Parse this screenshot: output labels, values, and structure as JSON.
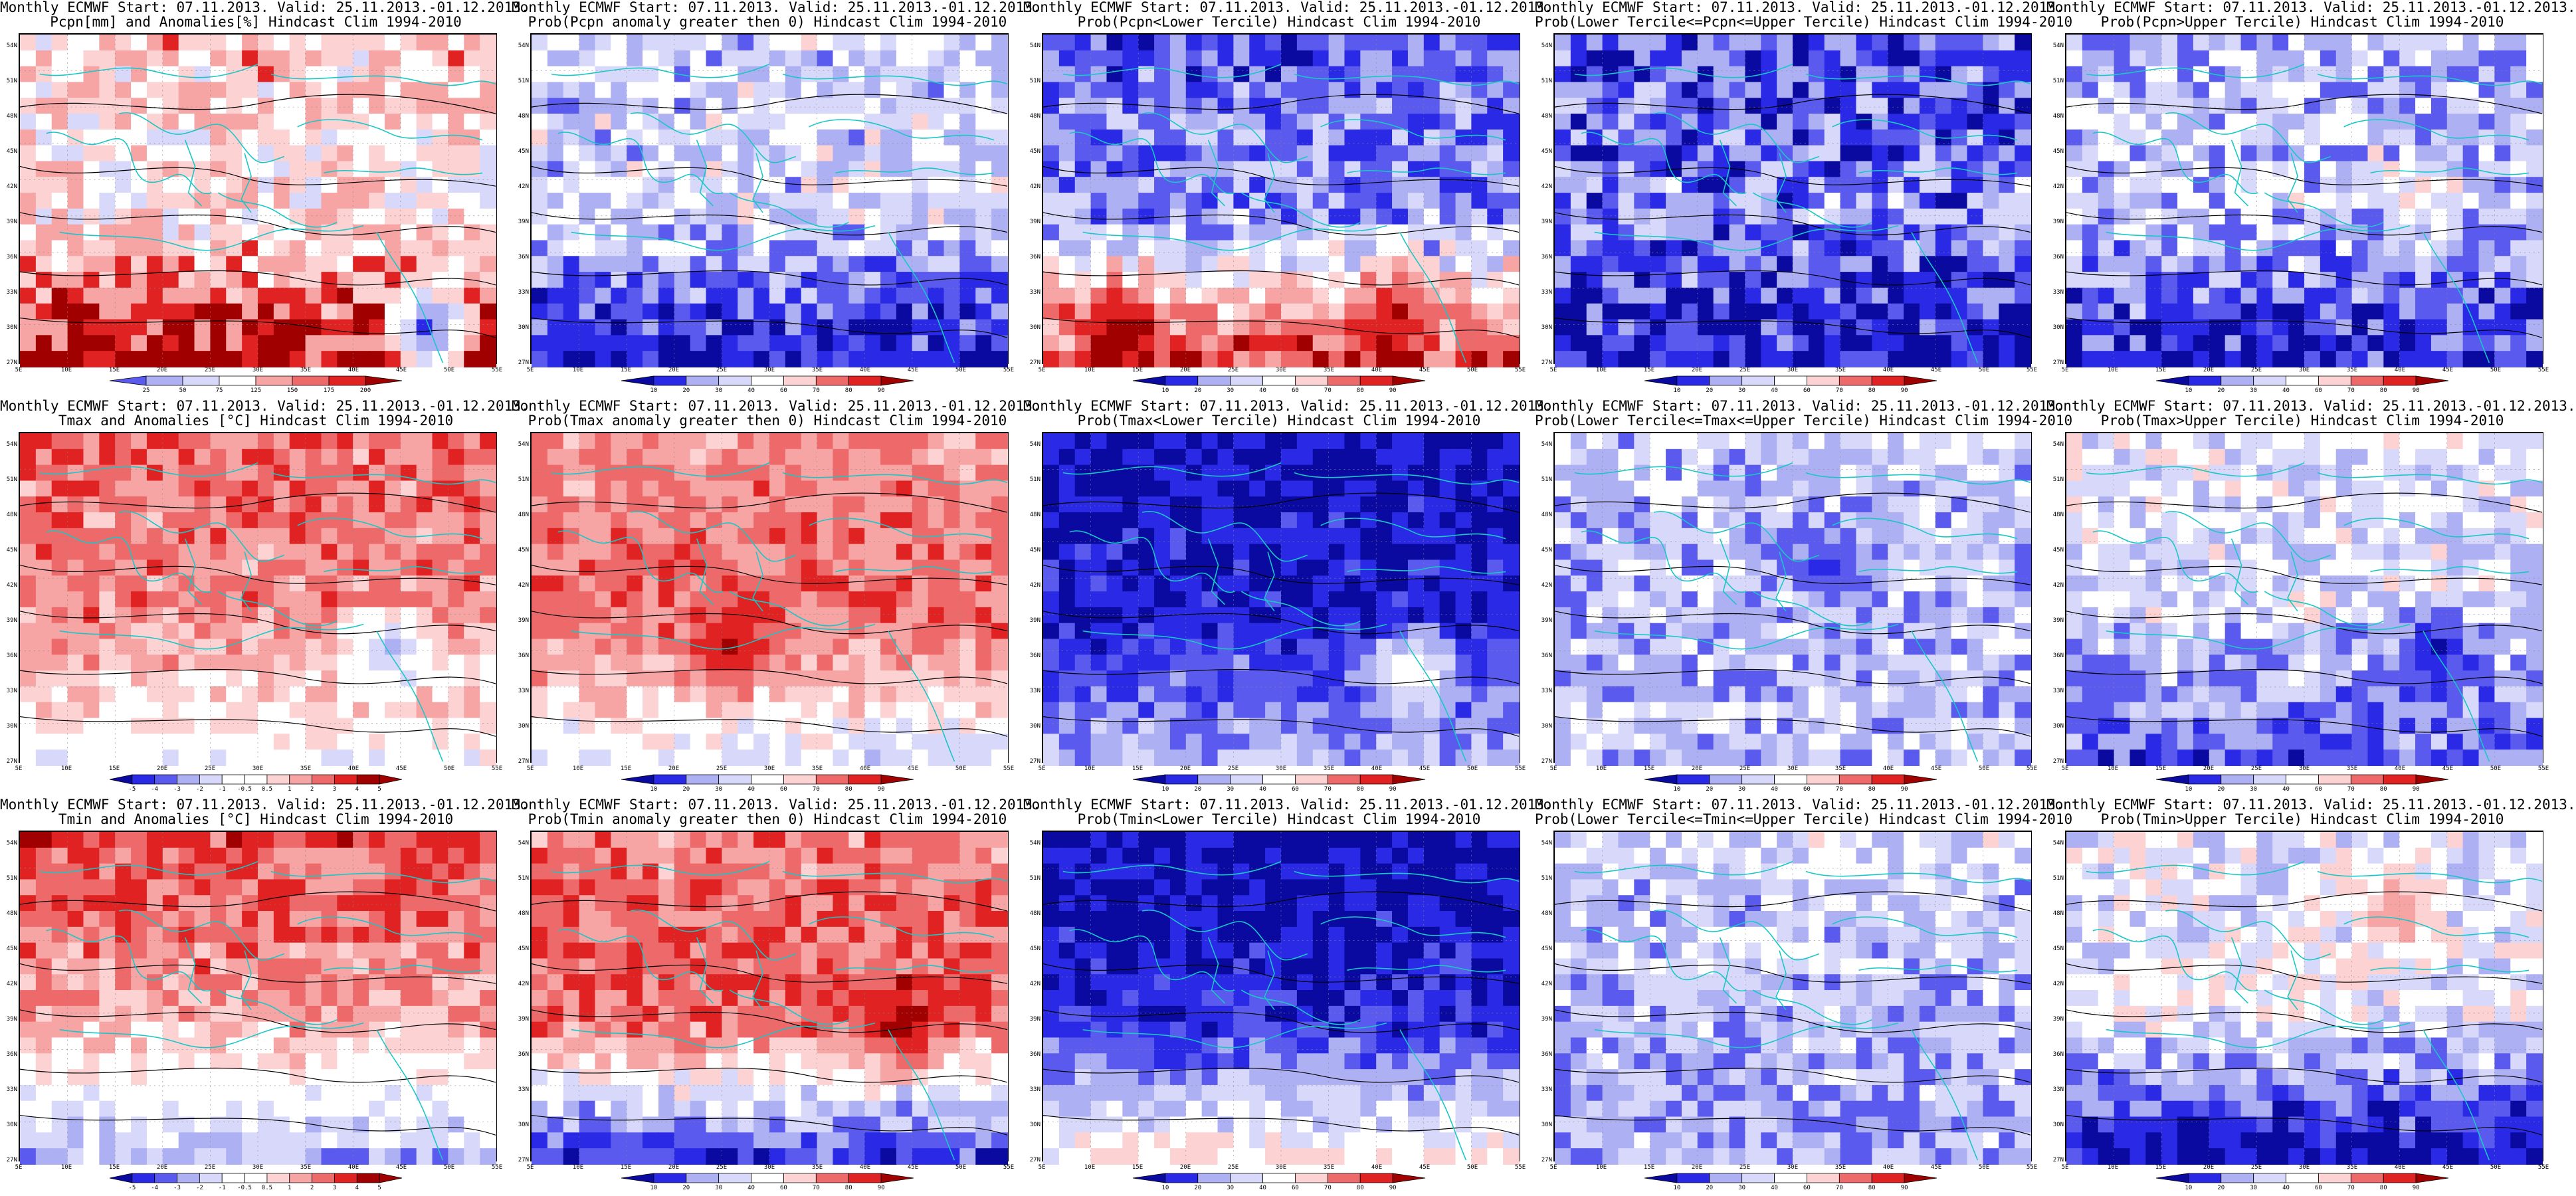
{
  "panels": [
    {
      "title_line1": "Monthly ECMWF Start: 07.11.2013. Valid: 25.11.2013.-01.12.2013.",
      "title_line2": "Pcpn[mm] and Anomalies[%] Hindcast Clim 1994-2010",
      "colorbar_ticks": [
        "25",
        "50",
        "75",
        "125",
        "150",
        "175",
        "200"
      ],
      "palette": "pcpn"
    },
    {
      "title_line1": "Monthly ECMWF Start: 07.11.2013. Valid: 25.11.2013.-01.12.2013.",
      "title_line2": "Prob(Pcpn anomaly greater then 0) Hindcast Clim 1994-2010",
      "colorbar_ticks": [
        "10",
        "20",
        "30",
        "40",
        "60",
        "70",
        "80",
        "90"
      ],
      "palette": "prob"
    },
    {
      "title_line1": "Monthly ECMWF Start: 07.11.2013. Valid: 25.11.2013.-01.12.2013.",
      "title_line2": "Prob(Pcpn<Lower Tercile) Hindcast Clim 1994-2010",
      "colorbar_ticks": [
        "10",
        "20",
        "30",
        "40",
        "60",
        "70",
        "80",
        "90"
      ],
      "palette": "prob"
    },
    {
      "title_line1": "Monthly ECMWF Start: 07.11.2013. Valid: 25.11.2013.-01.12.2013.",
      "title_line2": "Prob(Lower Tercile<=Pcpn<=Upper Tercile) Hindcast Clim 1994-2010",
      "colorbar_ticks": [
        "10",
        "20",
        "30",
        "40",
        "60",
        "70",
        "80",
        "90"
      ],
      "palette": "prob"
    },
    {
      "title_line1": "Monthly ECMWF Start: 07.11.2013. Valid: 25.11.2013.-01.12.2013.",
      "title_line2": "Prob(Pcpn>Upper Tercile) Hindcast Clim 1994-2010",
      "colorbar_ticks": [
        "10",
        "20",
        "30",
        "40",
        "60",
        "70",
        "80",
        "90"
      ],
      "palette": "prob"
    },
    {
      "title_line1": "Monthly ECMWF Start: 07.11.2013. Valid: 25.11.2013.-01.12.2013.",
      "title_line2": "Tmax and Anomalies [°C] Hindcast Clim 1994-2010",
      "colorbar_ticks": [
        "-5",
        "-4",
        "-3",
        "-2",
        "-1",
        "-0.5",
        "0.5",
        "1",
        "2",
        "3",
        "4",
        "5"
      ],
      "palette": "temp"
    },
    {
      "title_line1": "Monthly ECMWF Start: 07.11.2013. Valid: 25.11.2013.-01.12.2013.",
      "title_line2": "Prob(Tmax anomaly greater then 0) Hindcast Clim 1994-2010",
      "colorbar_ticks": [
        "10",
        "20",
        "30",
        "40",
        "60",
        "70",
        "80",
        "90"
      ],
      "palette": "prob"
    },
    {
      "title_line1": "Monthly ECMWF Start: 07.11.2013. Valid: 25.11.2013.-01.12.2013.",
      "title_line2": "Prob(Tmax<Lower Tercile) Hindcast Clim 1994-2010",
      "colorbar_ticks": [
        "10",
        "20",
        "30",
        "40",
        "60",
        "70",
        "80",
        "90"
      ],
      "palette": "prob"
    },
    {
      "title_line1": "Monthly ECMWF Start: 07.11.2013. Valid: 25.11.2013.-01.12.2013.",
      "title_line2": "Prob(Lower Tercile<=Tmax<=Upper Tercile) Hindcast Clim 1994-2010",
      "colorbar_ticks": [
        "10",
        "20",
        "30",
        "40",
        "60",
        "70",
        "80",
        "90"
      ],
      "palette": "prob"
    },
    {
      "title_line1": "Monthly ECMWF Start: 07.11.2013. Valid: 25.11.2013.-01.12.2013.",
      "title_line2": "Prob(Tmax>Upper Tercile) Hindcast Clim 1994-2010",
      "colorbar_ticks": [
        "10",
        "20",
        "30",
        "40",
        "60",
        "70",
        "80",
        "90"
      ],
      "palette": "prob"
    },
    {
      "title_line1": "Monthly ECMWF Start: 07.11.2013. Valid: 25.11.2013.-01.12.2013.",
      "title_line2": "Tmin and Anomalies [°C] Hindcast Clim 1994-2010",
      "colorbar_ticks": [
        "-5",
        "-4",
        "-3",
        "-2",
        "-1",
        "-0.5",
        "0.5",
        "1",
        "2",
        "3",
        "4",
        "5"
      ],
      "palette": "temp"
    },
    {
      "title_line1": "Monthly ECMWF Start: 07.11.2013. Valid: 25.11.2013.-01.12.2013.",
      "title_line2": "Prob(Tmin anomaly greater then 0) Hindcast Clim 1994-2010",
      "colorbar_ticks": [
        "10",
        "20",
        "30",
        "40",
        "60",
        "70",
        "80",
        "90"
      ],
      "palette": "prob"
    },
    {
      "title_line1": "Monthly ECMWF Start: 07.11.2013. Valid: 25.11.2013.-01.12.2013.",
      "title_line2": "Prob(Tmin<Lower Tercile) Hindcast Clim 1994-2010",
      "colorbar_ticks": [
        "10",
        "20",
        "30",
        "40",
        "60",
        "70",
        "80",
        "90"
      ],
      "palette": "prob"
    },
    {
      "title_line1": "Monthly ECMWF Start: 07.11.2013. Valid: 25.11.2013.-01.12.2013.",
      "title_line2": "Prob(Lower Tercile<=Tmin<=Upper Tercile) Hindcast Clim 1994-2010",
      "colorbar_ticks": [
        "10",
        "20",
        "30",
        "40",
        "60",
        "70",
        "80",
        "90"
      ],
      "palette": "prob"
    },
    {
      "title_line1": "Monthly ECMWF Start: 07.11.2013. Valid: 25.11.2013.-01.12.2013.",
      "title_line2": "Prob(Tmin>Upper Tercile) Hindcast Clim 1994-2010",
      "colorbar_ticks": [
        "10",
        "20",
        "30",
        "40",
        "60",
        "70",
        "80",
        "90"
      ],
      "palette": "prob"
    }
  ],
  "lat_labels": [
    "54N",
    "51N",
    "48N",
    "45N",
    "42N",
    "39N",
    "36N",
    "33N",
    "30N",
    "27N"
  ],
  "lon_labels": [
    "5E",
    "10E",
    "15E",
    "20E",
    "25E",
    "30E",
    "35E",
    "40E",
    "45E",
    "50E",
    "55E"
  ],
  "colors": {
    "deep_blue": "#0a0aa0",
    "blue": "#2a2ae6",
    "mid_blue": "#5a5aee",
    "light_blue": "#aeb0f4",
    "pale_blue": "#d8d8fa",
    "white": "#ffffff",
    "pale_red": "#fcd2d2",
    "light_red": "#f6a4a4",
    "mid_red": "#ee6a6a",
    "red": "#e02222",
    "deep_red": "#a00000",
    "coast": "#19c7c7",
    "contour": "#000000"
  }
}
